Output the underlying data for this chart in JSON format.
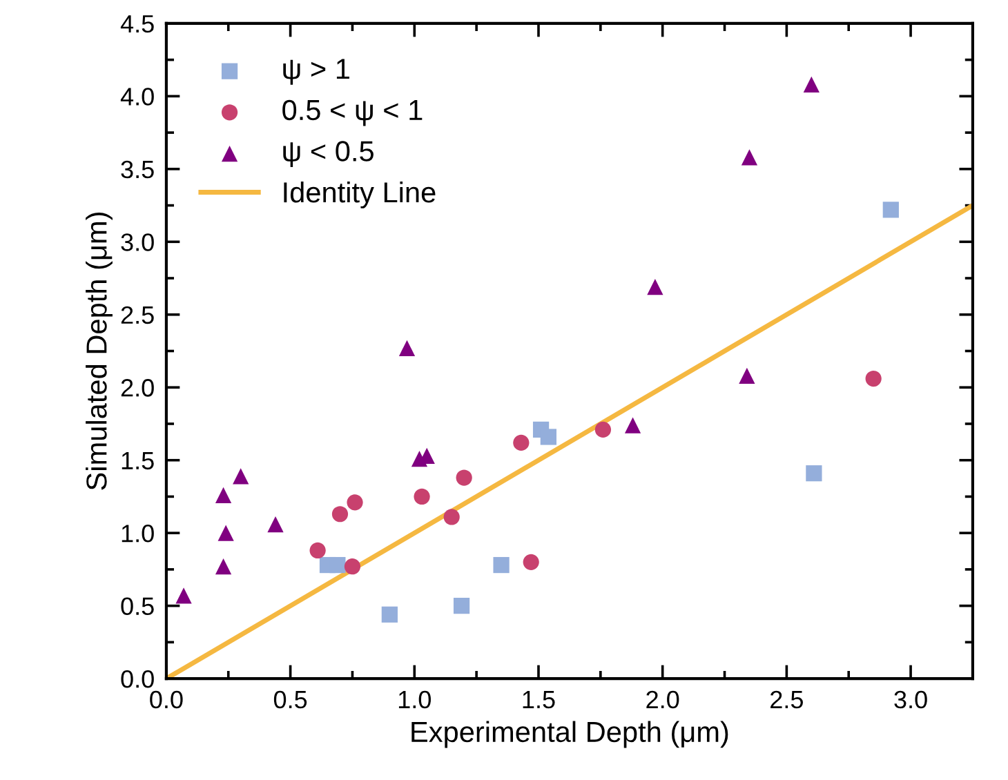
{
  "chart_data": {
    "type": "scatter",
    "xlabel": "Experimental Depth (μm)",
    "ylabel": "Simulated Depth (μm)",
    "xlim": [
      0,
      3.25
    ],
    "ylim": [
      0,
      4.5
    ],
    "xticks": [
      {
        "value": 0,
        "label": "0.0"
      },
      0.5,
      {
        "value": 1,
        "label": "1.0"
      },
      1.5,
      {
        "value": 2,
        "label": "2.0"
      },
      2.5,
      {
        "value": 3,
        "label": "3.0"
      }
    ],
    "yticks": [
      {
        "value": 0,
        "label": "0.0"
      },
      0.5,
      {
        "value": 1,
        "label": "1.0"
      },
      1.5,
      {
        "value": 2,
        "label": "2.0"
      },
      2.5,
      {
        "value": 3,
        "label": "3.0"
      },
      3.5,
      {
        "value": 4,
        "label": "4.0"
      },
      4.5
    ],
    "grid": false,
    "legend": "top left",
    "series": [
      {
        "name": "ψ > 1",
        "marker": "square",
        "color": "#94aedb",
        "x": [
          0.65,
          0.69,
          0.9,
          1.19,
          1.35,
          1.51,
          1.54,
          2.61,
          2.92
        ],
        "values": [
          0.78,
          0.78,
          0.44,
          0.5,
          0.78,
          1.71,
          1.66,
          1.41,
          3.22
        ]
      },
      {
        "name": "0.5 < ψ < 1",
        "marker": "circle",
        "color": "#c8416e",
        "x": [
          0.61,
          0.7,
          0.76,
          0.75,
          1.03,
          1.15,
          1.2,
          1.43,
          1.47,
          1.76,
          2.85
        ],
        "values": [
          0.88,
          1.13,
          1.21,
          0.77,
          1.25,
          1.11,
          1.38,
          1.62,
          0.8,
          1.71,
          2.06
        ]
      },
      {
        "name": "ψ < 0.5",
        "marker": "triangle",
        "color": "#800080",
        "x": [
          0.07,
          0.23,
          0.24,
          0.23,
          0.3,
          0.44,
          0.97,
          1.02,
          1.05,
          1.88,
          1.97,
          2.34,
          2.35,
          2.6
        ],
        "values": [
          0.57,
          1.26,
          1.0,
          0.77,
          1.39,
          1.06,
          2.27,
          1.51,
          1.53,
          1.74,
          2.69,
          2.08,
          3.58,
          4.08
        ]
      },
      {
        "name": "Identity Line",
        "type": "line",
        "marker": "none",
        "line_style": "solid",
        "color": "#f5b841",
        "x": [
          0,
          3.25
        ],
        "values": [
          0,
          3.25
        ]
      }
    ]
  }
}
